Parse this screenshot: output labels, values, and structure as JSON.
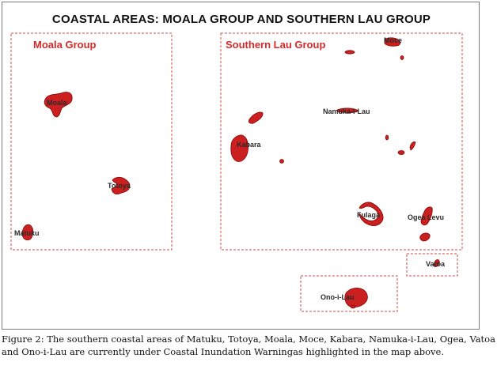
{
  "title": "COASTAL AREAS: MOALA GROUP AND SOUTHERN LAU GROUP",
  "groups": {
    "moala": "Moala Group",
    "southern_lau": "Southern Lau Group"
  },
  "islands": {
    "moala": "Moala",
    "totoya": "Totoya",
    "matuku": "Matuku",
    "moce": "Moce",
    "namuka": "Namuka-i-Lau",
    "kabara": "Kabara",
    "fulaga": "Fulaga",
    "ogea": "Ogea Levu",
    "vatoa": "Vatoa",
    "ono": "Ono-i-Lau"
  },
  "caption": "Figure 2: The southern coastal areas of Matuku, Totoya, Moala, Moce, Kabara, Namuka-i-Lau, Ogea, Vatoa and Ono-i-Lau are currently under Coastal Inundation Warningas highlighted in the map above.",
  "colors": {
    "island_fill": "#cc1f1f",
    "island_stroke": "#7d0c0c",
    "box_dash": "#d44a4a",
    "group_label": "#d62a2a"
  }
}
